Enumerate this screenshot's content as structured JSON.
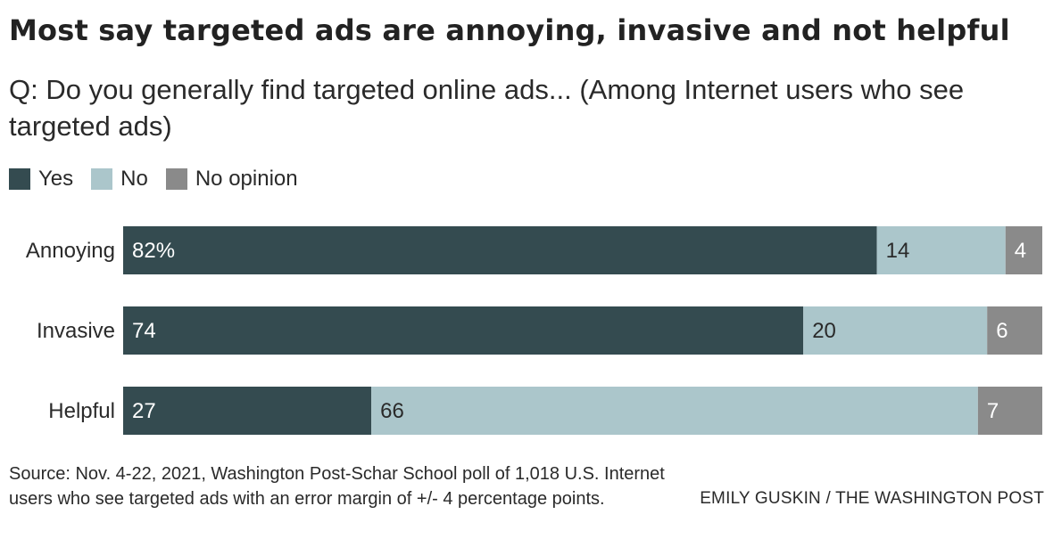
{
  "title": "Most say targeted ads are annoying, invasive and not helpful",
  "subtitle": "Q: Do you generally find targeted online ads... (Among Internet users who see targeted ads)",
  "legend": [
    {
      "label": "Yes",
      "color": "#344b50"
    },
    {
      "label": "No",
      "color": "#abc6cb"
    },
    {
      "label": "No opinion",
      "color": "#8a8a8a"
    }
  ],
  "chart_data": {
    "type": "bar",
    "orientation": "horizontal",
    "stacked": true,
    "categories": [
      "Annoying",
      "Invasive",
      "Helpful"
    ],
    "series": [
      {
        "name": "Yes",
        "values": [
          82,
          74,
          27
        ],
        "color": "#344b50",
        "labels": [
          "82%",
          "74",
          "27"
        ]
      },
      {
        "name": "No",
        "values": [
          14,
          20,
          66
        ],
        "color": "#abc6cb",
        "labels": [
          "14",
          "20",
          "66"
        ]
      },
      {
        "name": "No opinion",
        "values": [
          4,
          6,
          7
        ],
        "color": "#8a8a8a",
        "labels": [
          "4",
          "6",
          "7"
        ]
      }
    ],
    "xlim": [
      0,
      100
    ],
    "legend_position": "top-left",
    "grid": false
  },
  "footer": {
    "source": "Source: Nov. 4-22, 2021, Washington Post-Schar School poll of 1,018 U.S. Internet users who see targeted ads with an error margin of +/- 4 percentage points.",
    "credit": "EMILY GUSKIN / THE WASHINGTON POST"
  }
}
